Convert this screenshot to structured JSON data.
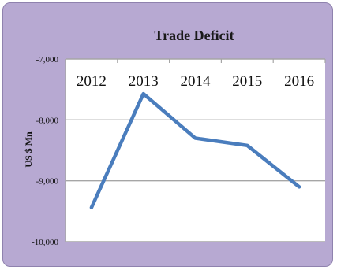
{
  "chart_data": {
    "type": "line",
    "title": "Trade Deficit",
    "xlabel": "",
    "ylabel": "US $ Mn",
    "categories": [
      "2012",
      "2013",
      "2014",
      "2015",
      "2016"
    ],
    "series": [
      {
        "values": [
          -9440,
          -7570,
          -8300,
          -8420,
          -9100
        ]
      }
    ],
    "ylim": [
      -10000,
      -7000
    ],
    "yticks": [
      "-7,000",
      "-8,000",
      "-9,000",
      "-10,000"
    ],
    "ytick_values": [
      -7000,
      -8000,
      -9000,
      -10000
    ],
    "grid": "horizontal",
    "x_axis_position": "top",
    "colors": {
      "frame_background": "#b7a9d2",
      "plot_background": "#ffffff",
      "line": "#4a7dbd",
      "grid": "#a6a6a6"
    }
  }
}
